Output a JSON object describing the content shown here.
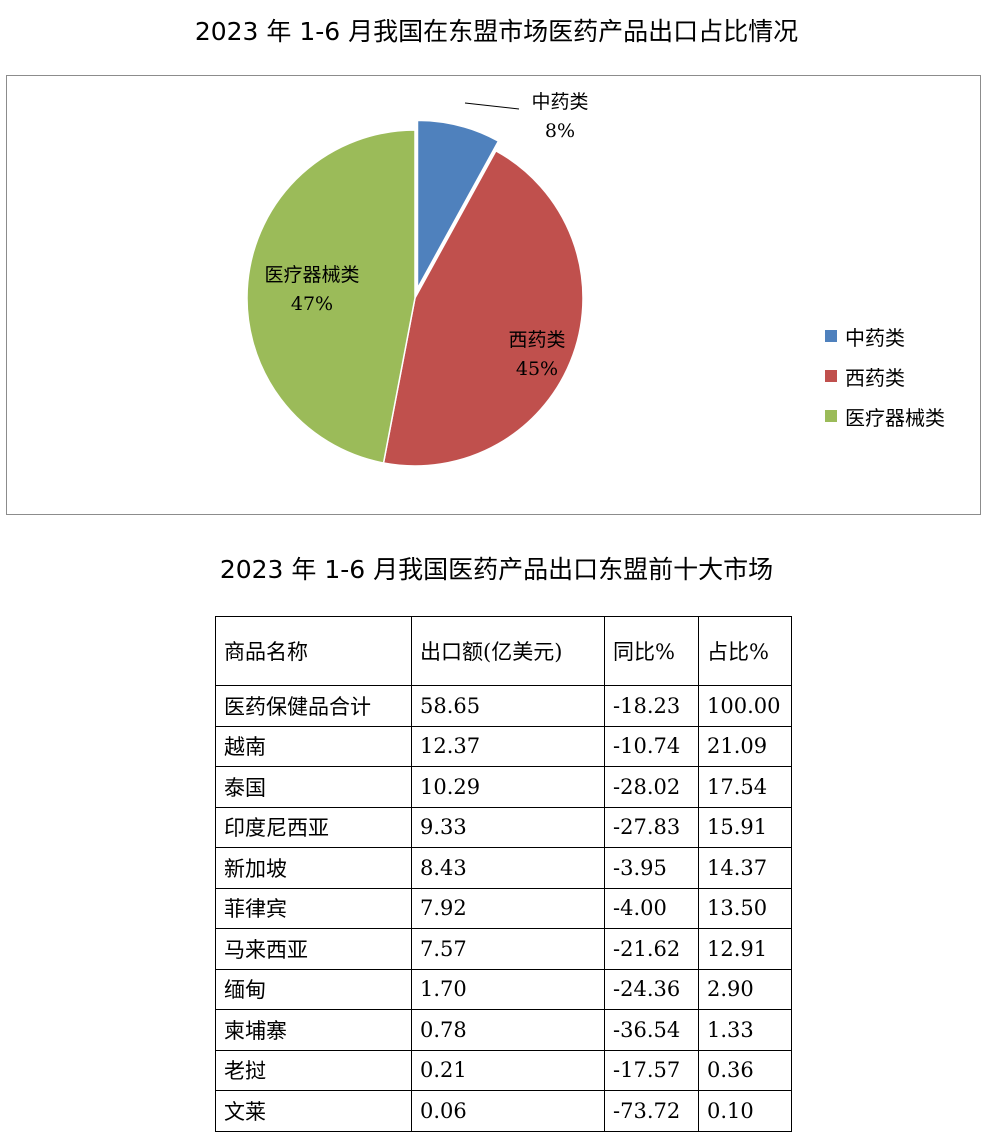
{
  "chart_title": "2023 年 1-6 月我国在东盟市场医药产品出口占比情况",
  "chart_data": {
    "type": "pie",
    "title": "2023 年 1-6 月我国在东盟市场医药产品出口占比情况",
    "categories": [
      "中药类",
      "西药类",
      "医疗器械类"
    ],
    "values": [
      8,
      45,
      47
    ],
    "value_labels": [
      "8%",
      "45%",
      "47%"
    ],
    "colors": [
      "#4f81bd",
      "#c0504d",
      "#9bbb59"
    ],
    "exploded": [
      "中药类"
    ],
    "legend": "right"
  },
  "table_title": "2023 年 1-6 月我国医药产品出口东盟前十大市场",
  "table": {
    "headers": [
      "商品名称",
      "出口额(亿美元)",
      "同比%",
      "占比%"
    ],
    "rows": [
      [
        "医药保健品合计",
        "58.65",
        "-18.23",
        "100.00"
      ],
      [
        "越南",
        "12.37",
        "-10.74",
        "21.09"
      ],
      [
        "泰国",
        "10.29",
        "-28.02",
        "17.54"
      ],
      [
        "印度尼西亚",
        "9.33",
        "-27.83",
        "15.91"
      ],
      [
        "新加坡",
        "8.43",
        "-3.95",
        "14.37"
      ],
      [
        "菲律宾",
        "7.92",
        "-4.00",
        "13.50"
      ],
      [
        "马来西亚",
        "7.57",
        "-21.62",
        "12.91"
      ],
      [
        "缅甸",
        "1.70",
        "-24.36",
        "2.90"
      ],
      [
        "柬埔寨",
        "0.78",
        "-36.54",
        "1.33"
      ],
      [
        "老挝",
        "0.21",
        "-17.57",
        "0.36"
      ],
      [
        "文莱",
        "0.06",
        "-73.72",
        "0.10"
      ]
    ]
  }
}
